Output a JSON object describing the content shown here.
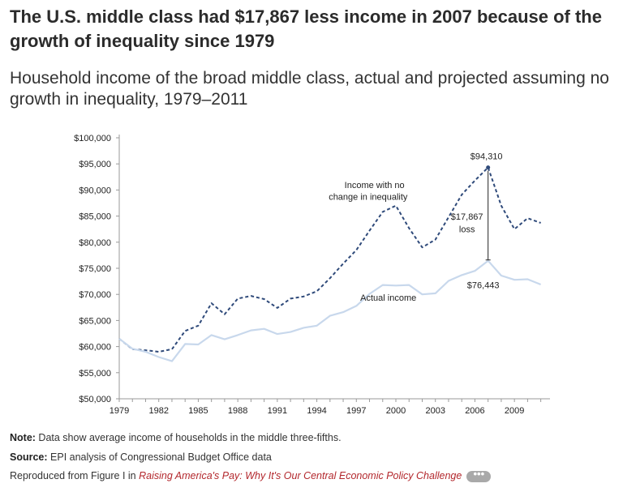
{
  "header": {
    "title": "The U.S. middle class had $17,867 less income in 2007 because of the growth of inequality since 1979",
    "subtitle": "Household income of the broad middle class, actual and projected assuming no growth in inequality, 1979–2011"
  },
  "chart_data": {
    "type": "line",
    "title": "",
    "xlabel": "",
    "ylabel": "",
    "x": [
      1979,
      1980,
      1981,
      1982,
      1983,
      1984,
      1985,
      1986,
      1987,
      1988,
      1989,
      1990,
      1991,
      1992,
      1993,
      1994,
      1995,
      1996,
      1997,
      1998,
      1999,
      2000,
      2001,
      2002,
      2003,
      2004,
      2005,
      2006,
      2007,
      2008,
      2009,
      2010,
      2011
    ],
    "xlim": [
      1979,
      2011.7
    ],
    "ylim": [
      50000,
      100000
    ],
    "x_ticks": [
      "1979",
      "1982",
      "1985",
      "1988",
      "1991",
      "1994",
      "1997",
      "2000",
      "2003",
      "2006",
      "2009"
    ],
    "y_ticks": [
      "$50,000",
      "$55,000",
      "$60,000",
      "$65,000",
      "$70,000",
      "$75,000",
      "$80,000",
      "$85,000",
      "$90,000",
      "$95,000",
      "$100,000"
    ],
    "grid": false,
    "series": [
      {
        "name": "Income with no change in inequality",
        "style": "dashed",
        "color": "#2f4a7a",
        "values": [
          61500,
          59500,
          59300,
          59000,
          59500,
          63000,
          64000,
          68300,
          66200,
          69200,
          69700,
          69100,
          67400,
          69200,
          69600,
          70600,
          73100,
          75900,
          78500,
          82200,
          85800,
          87000,
          82700,
          79000,
          80500,
          84800,
          89100,
          91800,
          94310,
          87000,
          82500,
          84600,
          83700
        ]
      },
      {
        "name": "Actual income",
        "style": "solid",
        "color": "#c8d8ec",
        "values": [
          61500,
          59600,
          59000,
          58000,
          57200,
          60500,
          60400,
          62200,
          61400,
          62200,
          63100,
          63400,
          62400,
          62800,
          63600,
          64000,
          65900,
          66600,
          67800,
          70100,
          71800,
          71700,
          71800,
          70000,
          70200,
          72600,
          73700,
          74500,
          76443,
          73600,
          72800,
          72900,
          71900
        ]
      }
    ],
    "annotations": {
      "top_value": "$94,310",
      "gap_label_line1": "$17,867",
      "gap_label_line2": "loss",
      "bottom_value": "$76,443",
      "upper_series_label_line1": "Income with no",
      "upper_series_label_line2": "change in inequality",
      "lower_series_label": "Actual income"
    }
  },
  "footer": {
    "note_label": "Note:",
    "note_text": " Data show average income of households in the middle three-fifths.",
    "source_label": "Source:",
    "source_text": " EPI analysis of Congressional Budget Office data",
    "reproduced_text": "Reproduced from Figure I in ",
    "reproduced_link": "Raising America's Pay: Why It's Our Central Economic Policy Challenge",
    "more_label": "•••"
  }
}
